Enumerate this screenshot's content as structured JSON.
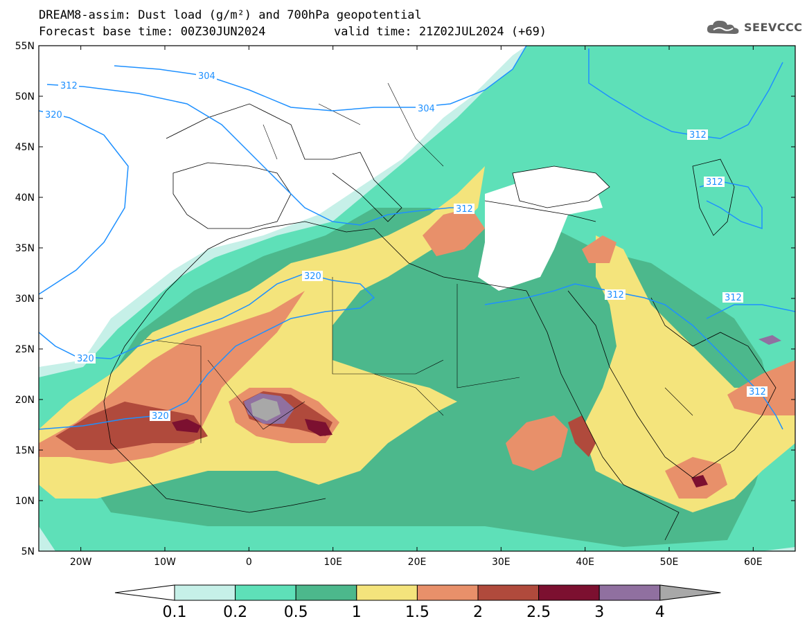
{
  "header": {
    "title_line1": "DREAM8-assim: Dust load (g/m²) and 700hPa geopotential",
    "title_line2": "Forecast base time: 00Z30JUN2024",
    "valid_time": "valid time: 21Z02JUL2024 (+69)",
    "logo_text": "SEEVCCC"
  },
  "map": {
    "lon_range": [
      -25,
      65
    ],
    "lat_range": [
      5,
      55
    ],
    "lat_ticks": [
      "55N",
      "50N",
      "45N",
      "40N",
      "35N",
      "30N",
      "25N",
      "20N",
      "15N",
      "10N",
      "5N"
    ],
    "lon_ticks": [
      "20W",
      "10W",
      "0",
      "10E",
      "20E",
      "30E",
      "40E",
      "50E",
      "60E"
    ],
    "contour_labels": [
      "304",
      "304",
      "312",
      "312",
      "312",
      "312",
      "312",
      "312",
      "320",
      "320",
      "320",
      "320"
    ],
    "contour_color": "#1e90ff"
  },
  "colorbar": {
    "labels": [
      "0.1",
      "0.2",
      "0.5",
      "1",
      "1.5",
      "2",
      "2.5",
      "3",
      "4"
    ],
    "colors": [
      "#c6f0e8",
      "#5ee0b8",
      "#4cb88c",
      "#f4e47c",
      "#e8906a",
      "#b04a3c",
      "#7c1030",
      "#9070a0",
      "#a8a8a8"
    ],
    "arrow_left_color": "#ffffff"
  }
}
